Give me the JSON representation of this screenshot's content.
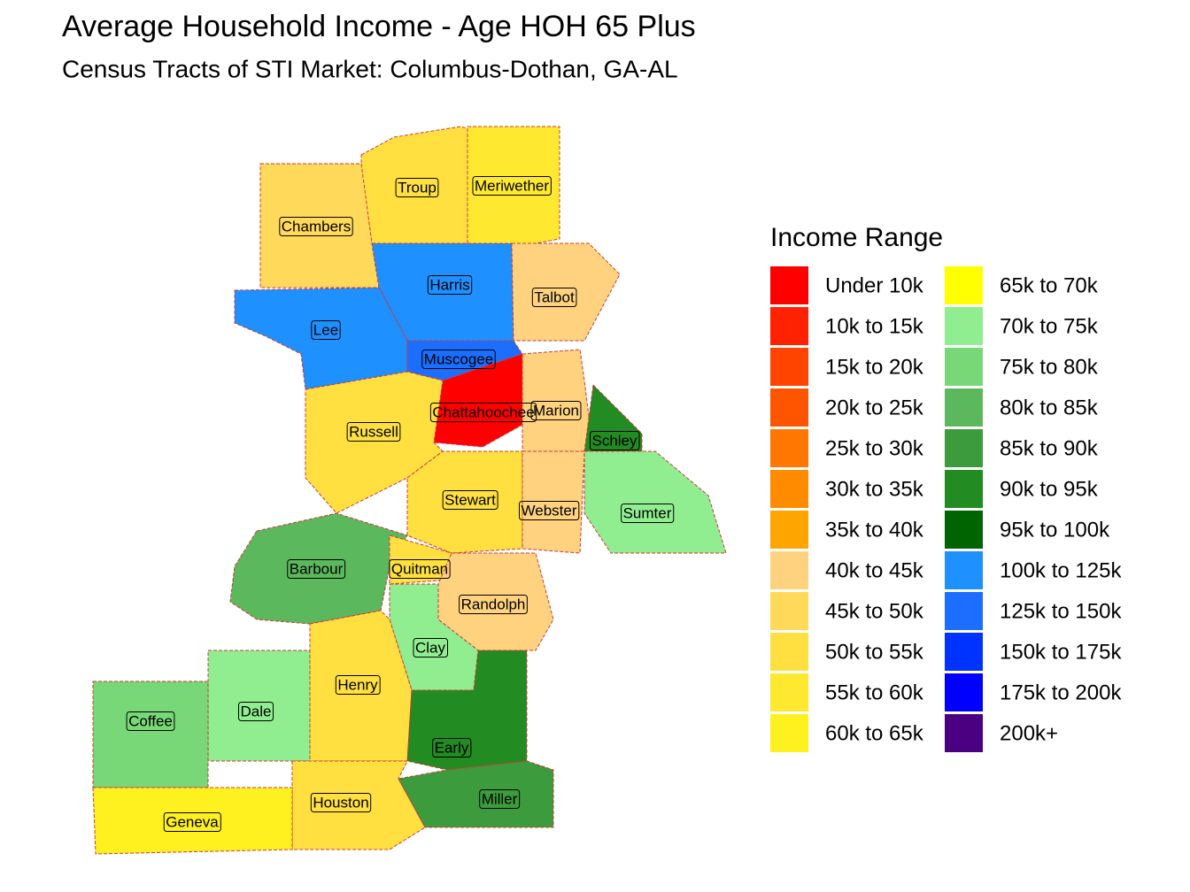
{
  "title": "Average Household Income - Age HOH 65 Plus",
  "subtitle": "Census Tracts of STI Market: Columbus-Dothan,  GA-AL",
  "legend": {
    "title": "Income Range",
    "items": [
      {
        "label": "Under 10k",
        "color": "#ff0000"
      },
      {
        "label": "10k to 15k",
        "color": "#ff2200"
      },
      {
        "label": "15k to 20k",
        "color": "#ff4400"
      },
      {
        "label": "20k to 25k",
        "color": "#ff5500"
      },
      {
        "label": "25k to 30k",
        "color": "#ff7700"
      },
      {
        "label": "30k to 35k",
        "color": "#ff8c00"
      },
      {
        "label": "35k to 40k",
        "color": "#ffa500"
      },
      {
        "label": "40k to 45k",
        "color": "#ffd280"
      },
      {
        "label": "45k to 50k",
        "color": "#ffda5a"
      },
      {
        "label": "50k to 55k",
        "color": "#ffe040"
      },
      {
        "label": "55k to 60k",
        "color": "#ffe930"
      },
      {
        "label": "60k to 65k",
        "color": "#fff020"
      },
      {
        "label": "65k to 70k",
        "color": "#ffff00"
      },
      {
        "label": "70k to 75k",
        "color": "#90ee90"
      },
      {
        "label": "75k to 80k",
        "color": "#78d878"
      },
      {
        "label": "80k to 85k",
        "color": "#5cb85c"
      },
      {
        "label": "85k to 90k",
        "color": "#3c9b3c"
      },
      {
        "label": "90k to 95k",
        "color": "#228b22"
      },
      {
        "label": "95k to 100k",
        "color": "#006400"
      },
      {
        "label": "100k to 125k",
        "color": "#1e90ff"
      },
      {
        "label": "125k to 150k",
        "color": "#1c6eff"
      },
      {
        "label": "150k to 175k",
        "color": "#0033ff"
      },
      {
        "label": "175k to 200k",
        "color": "#0000ff"
      },
      {
        "label": "200k+",
        "color": "#4b0082"
      }
    ]
  },
  "counties": [
    {
      "name": "Troup",
      "color": "#ffe040"
    },
    {
      "name": "Meriwether",
      "color": "#ffe930"
    },
    {
      "name": "Chambers",
      "color": "#ffda5a"
    },
    {
      "name": "Harris",
      "color": "#1e90ff"
    },
    {
      "name": "Talbot",
      "color": "#ffd280"
    },
    {
      "name": "Lee",
      "color": "#1e90ff"
    },
    {
      "name": "Muscogee",
      "color": "#1c6eff"
    },
    {
      "name": "Chattahoochee",
      "color": "#ff0000"
    },
    {
      "name": "Marion",
      "color": "#ffd280"
    },
    {
      "name": "Russell",
      "color": "#ffe040"
    },
    {
      "name": "Schley",
      "color": "#228b22"
    },
    {
      "name": "Stewart",
      "color": "#ffe040"
    },
    {
      "name": "Webster",
      "color": "#ffd280"
    },
    {
      "name": "Sumter",
      "color": "#90ee90"
    },
    {
      "name": "Barbour",
      "color": "#5cb85c"
    },
    {
      "name": "Quitman",
      "color": "#ffe040"
    },
    {
      "name": "Randolph",
      "color": "#ffd280"
    },
    {
      "name": "Clay",
      "color": "#90ee90"
    },
    {
      "name": "Henry",
      "color": "#ffe040"
    },
    {
      "name": "Dale",
      "color": "#90ee90"
    },
    {
      "name": "Coffee",
      "color": "#78d878"
    },
    {
      "name": "Early",
      "color": "#228b22"
    },
    {
      "name": "Houston",
      "color": "#ffe040"
    },
    {
      "name": "Miller",
      "color": "#3c9b3c"
    },
    {
      "name": "Geneva",
      "color": "#fff020"
    }
  ]
}
